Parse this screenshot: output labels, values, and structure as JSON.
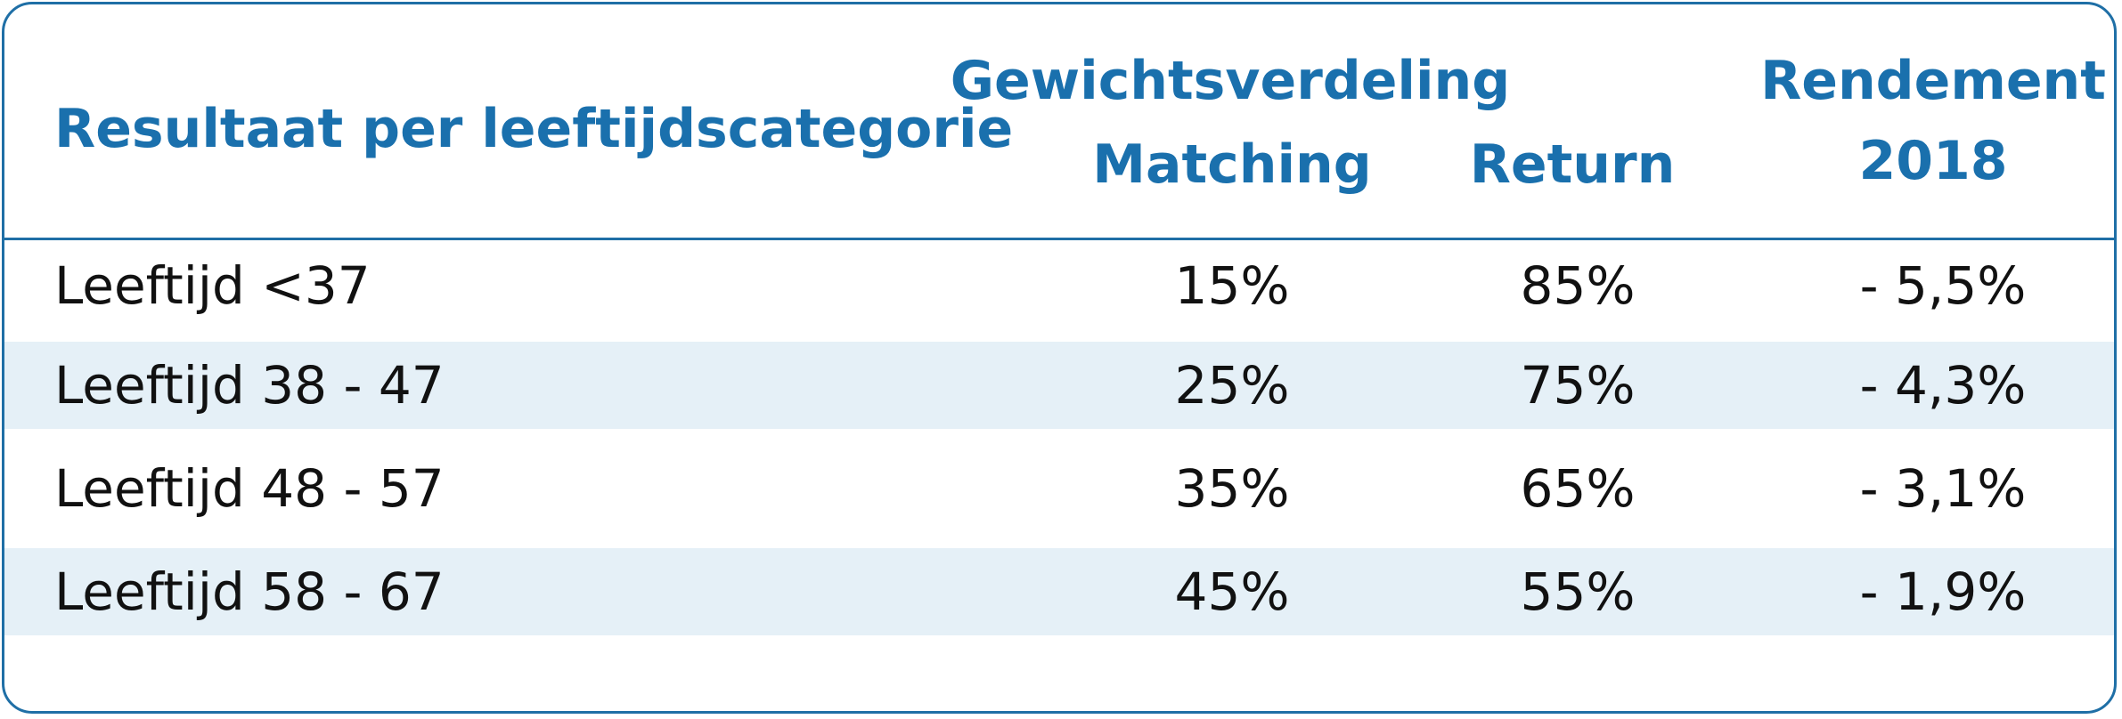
{
  "chart_data": {
    "type": "table",
    "title": "Resultaat per leeftijdscategorie",
    "group_header": "Gewichtsverdeling",
    "columns": [
      "Matching",
      "Return",
      "Rendement 2018"
    ],
    "rendement_header": [
      "Rendement",
      "2018"
    ],
    "rows": [
      {
        "label": "Leeftijd <37",
        "matching": "15%",
        "return": "85%",
        "rendement": "- 5,5%"
      },
      {
        "label": "Leeftijd 38 - 47",
        "matching": "25%",
        "return": "75%",
        "rendement": "- 4,3%"
      },
      {
        "label": "Leeftijd 48 - 57",
        "matching": "35%",
        "return": "65%",
        "rendement": "- 3,1%"
      },
      {
        "label": "Leeftijd 58 - 67",
        "matching": "45%",
        "return": "55%",
        "rendement": "- 1,9%"
      }
    ],
    "values": {
      "matching": [
        15,
        25,
        35,
        45
      ],
      "return": [
        85,
        75,
        65,
        55
      ],
      "rendement_2018": [
        -5.5,
        -4.3,
        -3.1,
        -1.9
      ]
    },
    "shaded_rows": [
      1,
      3
    ]
  },
  "colors": {
    "header_text": "#1a70ad",
    "border": "#1f6fa6",
    "row_shade": "#e5f0f7",
    "body_text": "#111111"
  }
}
